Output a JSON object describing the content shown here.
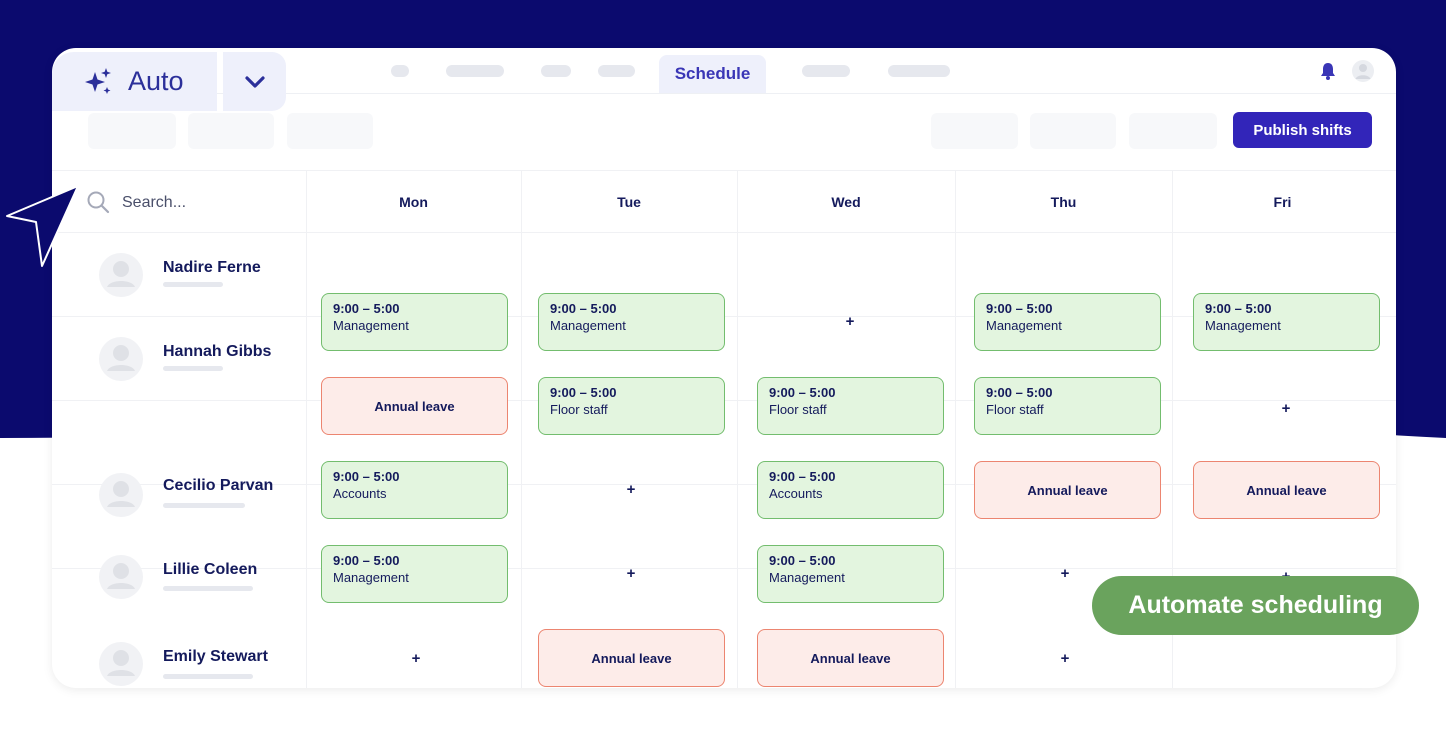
{
  "nav": {
    "active_tab": "Schedule"
  },
  "toolbar": {
    "publish_label": "Publish shifts"
  },
  "search": {
    "placeholder": "Search..."
  },
  "days": [
    "Mon",
    "Tue",
    "Wed",
    "Thu",
    "Fri"
  ],
  "employees": [
    {
      "name": "Nadire Ferne"
    },
    {
      "name": "Hannah Gibbs"
    },
    {
      "name": "Cecilio Parvan"
    },
    {
      "name": "Lillie Coleen"
    },
    {
      "name": "Emily Stewart"
    }
  ],
  "shifts": {
    "r0": {
      "mon": {
        "time": "9:00 – 5:00",
        "role": "Management"
      },
      "tue": {
        "time": "9:00 – 5:00",
        "role": "Management"
      },
      "wed": {
        "add": "+"
      },
      "thu": {
        "time": "9:00 – 5:00",
        "role": "Management"
      },
      "fri": {
        "time": "9:00 – 5:00",
        "role": "Management"
      }
    },
    "r1": {
      "mon": {
        "leave": "Annual leave"
      },
      "tue": {
        "time": "9:00 – 5:00",
        "role": "Floor staff"
      },
      "wed": {
        "time": "9:00 – 5:00",
        "role": "Floor staff"
      },
      "thu": {
        "time": "9:00 – 5:00",
        "role": "Floor staff"
      },
      "fri": {
        "add": "+"
      }
    },
    "r2": {
      "mon": {
        "time": "9:00 – 5:00",
        "role": "Accounts"
      },
      "tue": {
        "add": "+"
      },
      "wed": {
        "time": "9:00 – 5:00",
        "role": "Accounts"
      },
      "thu": {
        "leave": "Annual leave"
      },
      "fri": {
        "leave": "Annual leave"
      }
    },
    "r3": {
      "mon": {
        "time": "9:00 – 5:00",
        "role": "Management"
      },
      "tue": {
        "add": "+"
      },
      "wed": {
        "time": "9:00 – 5:00",
        "role": "Management"
      },
      "thu": {
        "add": "+"
      },
      "fri": {
        "add": "+"
      }
    },
    "r4": {
      "mon": {
        "add": "+"
      },
      "tue": {
        "leave": "Annual leave"
      },
      "wed": {
        "leave": "Annual leave"
      },
      "thu": {
        "add": "+"
      }
    }
  },
  "auto": {
    "label": "Auto"
  },
  "promo": {
    "label": "Automate scheduling"
  },
  "colors": {
    "brand_navy": "#0b0a6e",
    "primary": "#3225b9",
    "work_fill": "#e3f5df",
    "work_border": "#73bd6e",
    "leave_fill": "#fdece9",
    "leave_border": "#ec8570",
    "promo_green": "#6aa35d"
  },
  "icons": {
    "auto": "sparkles-icon",
    "dropdown": "chevron-down-icon",
    "search": "search-icon",
    "notifications": "bell-icon",
    "account": "user-icon",
    "pointer": "cursor-arrow-icon"
  }
}
